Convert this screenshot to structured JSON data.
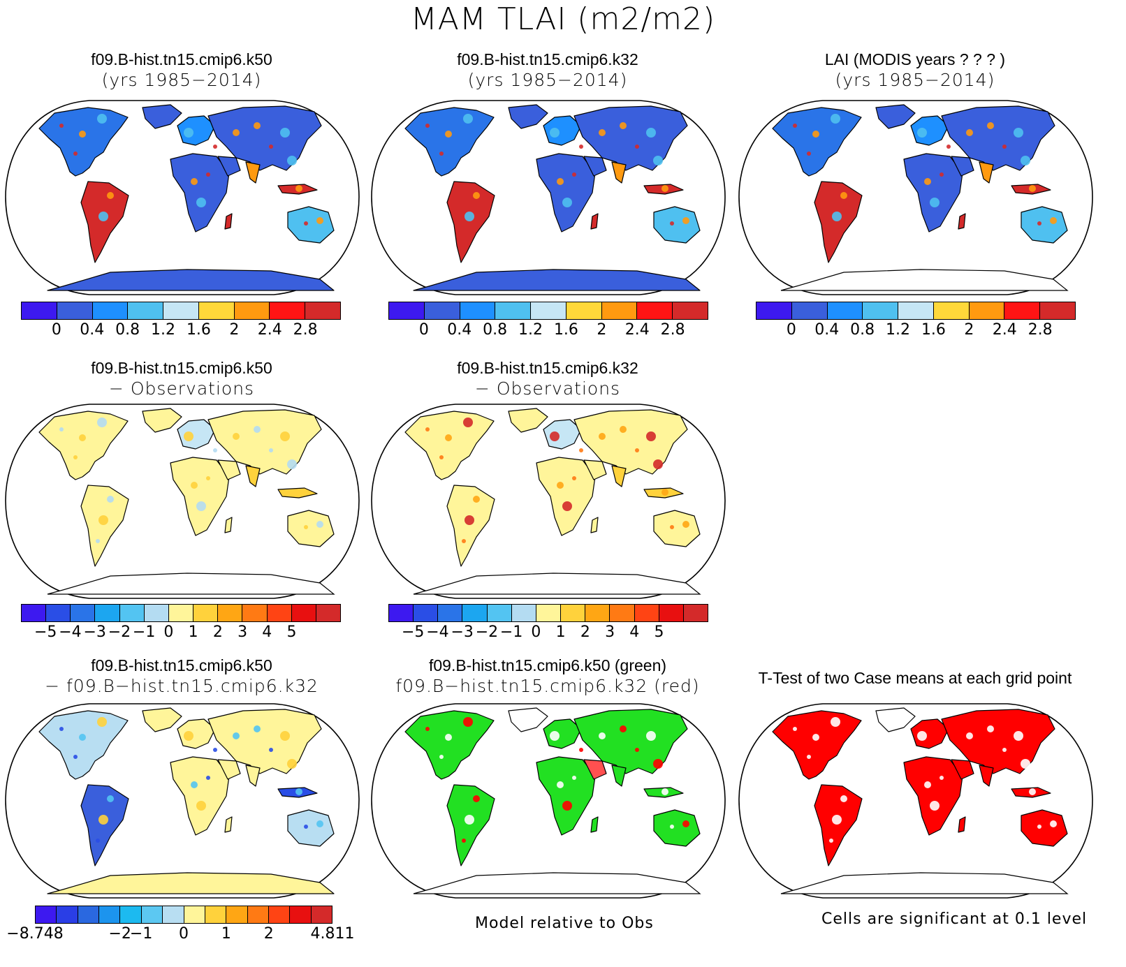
{
  "title": "MAM TLAI (m2/m2)",
  "colors": {
    "land_blue": "#3b5bdc",
    "land_red": "#d62c2c",
    "land_yellow": "#fff59a",
    "sig_green": "#22e022",
    "sig_red": "#ff0000",
    "outline": "#000000"
  },
  "panels": [
    {
      "title1": "f09.B-hist.tn15.cmip6.k50",
      "title2": "(yrs 1985−2014)",
      "palette": "abs",
      "antarctica": true
    },
    {
      "title1": "f09.B-hist.tn15.cmip6.k32",
      "title2": "(yrs 1985−2014)",
      "palette": "abs",
      "antarctica": true
    },
    {
      "title1": "LAI (MODIS years ? ? ? )",
      "title2": "(yrs 1985−2014)",
      "palette": "abs",
      "antarctica": false
    },
    {
      "title1": "f09.B-hist.tn15.cmip6.k50",
      "title2": "− Observations",
      "palette": "diff_obs",
      "antarctica": false
    },
    {
      "title1": "f09.B-hist.tn15.cmip6.k32",
      "title2": "− Observations",
      "palette": "diff_obs",
      "antarctica": false
    },
    {
      "title1": "f09.B-hist.tn15.cmip6.k50",
      "title2": "− f09.B−hist.tn15.cmip6.k32",
      "palette": "diff_models",
      "antarctica": true
    },
    {
      "title1": "f09.B-hist.tn15.cmip6.k50 (green)",
      "title2": "f09.B−hist.tn15.cmip6.k32 (red)",
      "palette": "green_red",
      "antarctica": false
    },
    {
      "title1": "T-Test of two Case means at each grid point",
      "title2": "",
      "palette": "ttest",
      "antarctica": false
    }
  ],
  "colorbars": {
    "abs": {
      "colors": [
        "#3d19f0",
        "#3a5fdc",
        "#1e90ff",
        "#4fc0f0",
        "#c6e6f5",
        "#ffd83a",
        "#ff9a10",
        "#ff1414",
        "#d42a2a"
      ],
      "labels": [
        "0",
        "0.4",
        "0.8",
        "1.2",
        "1.6",
        "2",
        "2.4",
        "2.8"
      ]
    },
    "diff_obs": {
      "colors": [
        "#3d19f0",
        "#2a4ee6",
        "#2a74e8",
        "#1ca6f0",
        "#53c4f2",
        "#b4dcf2",
        "#fff59a",
        "#ffd23c",
        "#ffa614",
        "#ff7a14",
        "#ff4414",
        "#e81010",
        "#d42a2a"
      ],
      "labels": [
        "−5",
        "−4",
        "−3",
        "−2",
        "−1",
        "0",
        "1",
        "2",
        "3",
        "4",
        "5"
      ]
    },
    "diff_models": {
      "colors": [
        "#3d19f0",
        "#2a3ee6",
        "#2a68e0",
        "#1c94ee",
        "#1cbaf0",
        "#5cc8f2",
        "#b8def2",
        "#fff59a",
        "#ffd23c",
        "#ffa614",
        "#ff7a14",
        "#ff4414",
        "#e81010",
        "#d42a2a"
      ],
      "labels": [
        "−8.748",
        "−2",
        "−1",
        "0",
        "1",
        "2",
        "4.811"
      ]
    }
  },
  "notes": {
    "model_relative": "Model relative to Obs",
    "significance": "Cells are significant at 0.1 level"
  }
}
